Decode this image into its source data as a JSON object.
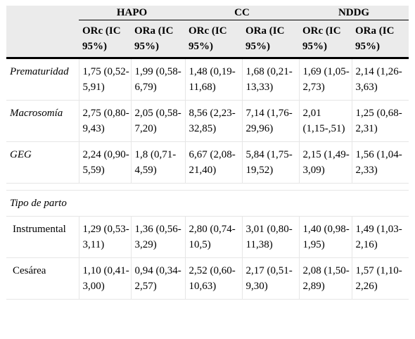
{
  "groups": [
    "HAPO",
    "CC",
    "NDDG"
  ],
  "subheaders": [
    "ORc (IC 95%)",
    "ORa (IC 95%)",
    "ORc (IC 95%)",
    "ORa (IC 95%)",
    "ORc (IC 95%)",
    "ORa (IC 95%)"
  ],
  "rows": [
    {
      "label": "Prematuridad",
      "cells": [
        "1,75 (0,52-5,91)",
        "1,99 (0,58-6,79)",
        "1,48 (0,19-11,68)",
        "1,68 (0,21-13,33)",
        "1,69 (1,05-2,73)",
        "2,14 (1,26-3,63)"
      ]
    },
    {
      "label": "Macrosomía",
      "cells": [
        "2,75 (0,80-9,43)",
        "2,05 (0,58-7,20)",
        "8,56 (2,23-32,85)",
        "7,14 (1,76-29,96)",
        "2,01 (1,15-,51)",
        "1,25 (0,68-2,31)"
      ]
    },
    {
      "label": "GEG",
      "cells": [
        "2,24 (0,90-5,59)",
        "1,8 (0,71-4,59)",
        "6,67 (2,08-21,40)",
        "5,84 (1,75-19,52)",
        "2,15 (1,49-3,09)",
        "1,56 (1,04-2,33)"
      ]
    }
  ],
  "section": {
    "label": "Tipo de parto",
    "rows": [
      {
        "label": "Instrumental",
        "cells": [
          "1,29 (0,53-3,11)",
          "1,36 (0,56-3,29)",
          "2,80 (0,74-10,5)",
          "3,01 (0,80-11,38)",
          "1,40 (0,98-1,95)",
          "1,49 (1,03-2,16)"
        ]
      },
      {
        "label": "Cesárea",
        "cells": [
          "1,10 (0,41-3,00)",
          "0,94 (0,34-2,57)",
          "2,52 (0,60-10,63)",
          "2,17 (0,51-9,30)",
          "2,08 (1,50-2,89)",
          "1,57 (1,10-2,26)"
        ]
      }
    ]
  }
}
